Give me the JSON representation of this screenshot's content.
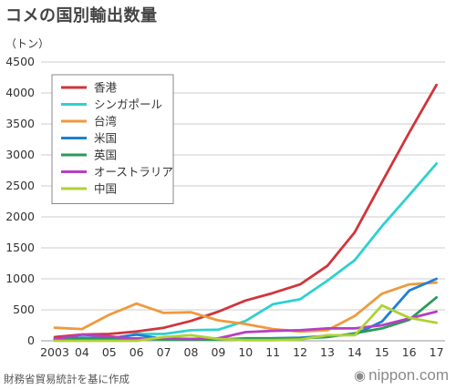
{
  "title": "コメの国別輸出数量",
  "source": "財務省貿易統計を基に作成",
  "brand": {
    "name": "nippon.com",
    "icon": "speech-bubble-icon"
  },
  "chart_data": {
    "type": "line",
    "ylabel": "（トン）",
    "xlabel": "",
    "ylim": [
      0,
      4500
    ],
    "yticks": [
      0,
      500,
      1000,
      1500,
      2000,
      2500,
      3000,
      3500,
      4000,
      4500
    ],
    "categories": [
      "2003",
      "04",
      "05",
      "06",
      "07",
      "08",
      "09",
      "10",
      "11",
      "12",
      "13",
      "14",
      "15",
      "16",
      "17"
    ],
    "grid": true,
    "legend_position": "top-left",
    "series": [
      {
        "name": "香港",
        "color": "#d0353b",
        "values": [
          60,
          100,
          110,
          150,
          210,
          320,
          470,
          650,
          770,
          910,
          1210,
          1750,
          2560,
          3360,
          4130
        ]
      },
      {
        "name": "シンガポール",
        "color": "#2fd0d0",
        "values": [
          10,
          30,
          20,
          110,
          110,
          170,
          180,
          320,
          590,
          670,
          970,
          1300,
          1850,
          2350,
          2860
        ]
      },
      {
        "name": "台湾",
        "color": "#ee9a3e",
        "values": [
          210,
          190,
          420,
          600,
          450,
          460,
          330,
          270,
          190,
          150,
          170,
          400,
          760,
          910,
          940
        ]
      },
      {
        "name": "米国",
        "color": "#1f7fd6",
        "values": [
          30,
          50,
          40,
          100,
          30,
          30,
          30,
          20,
          40,
          50,
          80,
          100,
          310,
          810,
          1000
        ]
      },
      {
        "name": "英国",
        "color": "#2a9a5a",
        "values": [
          20,
          40,
          30,
          40,
          20,
          20,
          20,
          40,
          40,
          40,
          60,
          120,
          200,
          340,
          700
        ]
      },
      {
        "name": "オーストラリア",
        "color": "#b63fc1",
        "values": [
          30,
          100,
          70,
          30,
          40,
          30,
          40,
          140,
          160,
          170,
          200,
          200,
          250,
          360,
          470
        ]
      },
      {
        "name": "中国",
        "color": "#aed234",
        "values": [
          0,
          0,
          0,
          0,
          60,
          90,
          30,
          10,
          10,
          20,
          90,
          90,
          570,
          370,
          290
        ]
      }
    ]
  }
}
